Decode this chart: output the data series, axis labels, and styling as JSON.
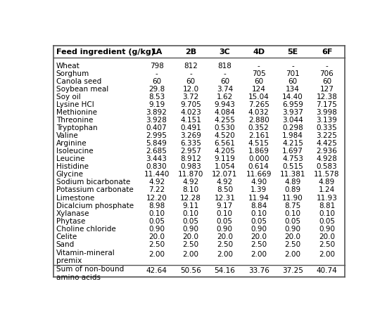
{
  "columns": [
    "Feed ingredient (g/kg)",
    "1A",
    "2B",
    "3C",
    "4D",
    "5E",
    "6F"
  ],
  "rows": [
    [
      "Wheat",
      "798",
      "812",
      "818",
      "-",
      "-",
      "-"
    ],
    [
      "Sorghum",
      "-",
      "-",
      "-",
      "705",
      "701",
      "706"
    ],
    [
      "Canola seed",
      "60",
      "60",
      "60",
      "60",
      "60",
      "60"
    ],
    [
      "Soybean meal",
      "29.8",
      "12.0",
      "3.74",
      "124",
      "134",
      "127"
    ],
    [
      "Soy oil",
      "8.53",
      "3.72",
      "1.62",
      "15.04",
      "14.40",
      "12.38"
    ],
    [
      "Lysine HCl",
      "9.19",
      "9.705",
      "9.943",
      "7.265",
      "6.959",
      "7.175"
    ],
    [
      "Methionine",
      "3.892",
      "4.023",
      "4.084",
      "4.032",
      "3.937",
      "3.998"
    ],
    [
      "Threonine",
      "3.928",
      "4.151",
      "4.255",
      "2.880",
      "3.044",
      "3.139"
    ],
    [
      "Tryptophan",
      "0.407",
      "0.491",
      "0.530",
      "0.352",
      "0.298",
      "0.335"
    ],
    [
      "Valine",
      "2.995",
      "3.269",
      "4.520",
      "2.161",
      "1.984",
      "3.225"
    ],
    [
      "Arginine",
      "5.849",
      "6.335",
      "6.561",
      "4.515",
      "4.215",
      "4.425"
    ],
    [
      "Isoleucine",
      "2.685",
      "2.957",
      "4.205",
      "1.869",
      "1.697",
      "2.936"
    ],
    [
      "Leucine",
      "3.443",
      "8.912",
      "9.119",
      "0.000",
      "4.753",
      "4.928"
    ],
    [
      "Histidine",
      "0.830",
      "0.983",
      "1.054",
      "0.614",
      "0.515",
      "0.583"
    ],
    [
      "Glycine",
      "11.440",
      "11.870",
      "12.071",
      "11.669",
      "11.381",
      "11.578"
    ],
    [
      "Sodium bicarbonate",
      "4.92",
      "4.92",
      "4.92",
      "4.90",
      "4.89",
      "4.89"
    ],
    [
      "Potassium carbonate",
      "7.22",
      "8.10",
      "8.50",
      "1.39",
      "0.89",
      "1.24"
    ],
    [
      "Limestone",
      "12.20",
      "12.28",
      "12.31",
      "11.94",
      "11.90",
      "11.93"
    ],
    [
      "Dicalcium phosphate",
      "8.98",
      "9.11",
      "9.17",
      "8.84",
      "8.75",
      "8.81"
    ],
    [
      "Xylanase",
      "0.10",
      "0.10",
      "0.10",
      "0.10",
      "0.10",
      "0.10"
    ],
    [
      "Phytase",
      "0.05",
      "0.05",
      "0.05",
      "0.05",
      "0.05",
      "0.05"
    ],
    [
      "Choline chloride",
      "0.90",
      "0.90",
      "0.90",
      "0.90",
      "0.90",
      "0.90"
    ],
    [
      "Celite",
      "20.0",
      "20.0",
      "20.0",
      "20.0",
      "20.0",
      "20.0"
    ],
    [
      "Sand",
      "2.50",
      "2.50",
      "2.50",
      "2.50",
      "2.50",
      "2.50"
    ],
    [
      "Vitamin-mineral\npremix",
      "2.00",
      "2.00",
      "2.00",
      "2.00",
      "2.00",
      "2.00"
    ]
  ],
  "footer_rows": [
    [
      "Sum of non-bound\namino acids",
      "42.64",
      "50.56",
      "54.16",
      "33.76",
      "37.25",
      "40.74"
    ]
  ],
  "font_size": 7.5,
  "header_font_size": 8.0,
  "text_color": "#000000",
  "border_color": "#555555",
  "bg_color": "#ffffff"
}
